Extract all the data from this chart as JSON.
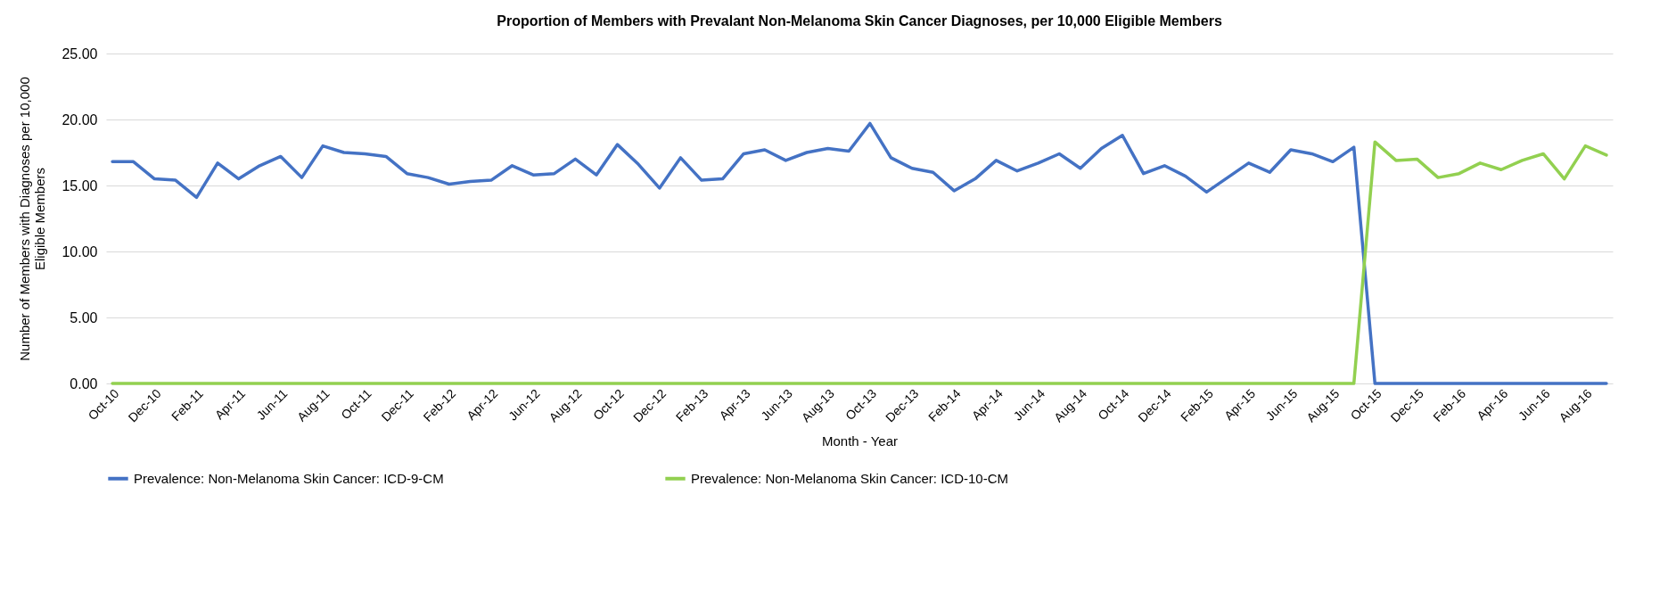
{
  "chart_data": {
    "type": "line",
    "title": "Proportion of Members with Prevalant Non-Melanoma Skin Cancer Diagnoses, per 10,000 Eligible Members",
    "xlabel": "Month - Year",
    "ylabel": "Number of Members with Diagnoses per 10,000\nEligible Members",
    "categories": [
      "Oct-10",
      null,
      "Dec-10",
      null,
      "Feb-11",
      null,
      "Apr-11",
      null,
      "Jun-11",
      null,
      "Aug-11",
      null,
      "Oct-11",
      null,
      "Dec-11",
      null,
      "Feb-12",
      null,
      "Apr-12",
      null,
      "Jun-12",
      null,
      "Aug-12",
      null,
      "Oct-12",
      null,
      "Dec-12",
      null,
      "Feb-13",
      null,
      "Apr-13",
      null,
      "Jun-13",
      null,
      "Aug-13",
      null,
      "Oct-13",
      null,
      "Dec-13",
      null,
      "Feb-14",
      null,
      "Apr-14",
      null,
      "Jun-14",
      null,
      "Aug-14",
      null,
      "Oct-14",
      null,
      "Dec-14",
      null,
      "Feb-15",
      null,
      "Apr-15",
      null,
      "Jun-15",
      null,
      "Aug-15",
      null,
      "Oct-15",
      null,
      "Dec-15",
      null,
      "Feb-16",
      null,
      "Apr-16",
      null,
      "Jun-16",
      null,
      "Aug-16",
      null
    ],
    "series": [
      {
        "name": "Prevalence: Non-Melanoma Skin Cancer: ICD-9-CM",
        "color": "#4472c4",
        "values": [
          16.8,
          16.8,
          15.5,
          15.4,
          14.1,
          16.7,
          15.5,
          16.5,
          17.2,
          15.6,
          18.0,
          17.5,
          17.4,
          17.2,
          15.9,
          15.6,
          15.1,
          15.3,
          15.4,
          16.5,
          15.8,
          15.9,
          17.0,
          15.8,
          18.1,
          16.6,
          14.8,
          17.1,
          15.4,
          15.5,
          17.4,
          17.7,
          16.9,
          17.5,
          17.8,
          17.6,
          19.7,
          17.1,
          16.3,
          16.0,
          14.6,
          15.5,
          16.9,
          16.1,
          16.7,
          17.4,
          16.3,
          17.8,
          18.8,
          15.9,
          16.5,
          15.7,
          14.5,
          15.6,
          16.7,
          16.0,
          17.7,
          17.4,
          16.8,
          17.9,
          0,
          0,
          0,
          0,
          0,
          0,
          0,
          0,
          0,
          0,
          0,
          0
        ]
      },
      {
        "name": "Prevalence: Non-Melanoma Skin Cancer: ICD-10-CM",
        "color": "#92d050",
        "values": [
          0,
          0,
          0,
          0,
          0,
          0,
          0,
          0,
          0,
          0,
          0,
          0,
          0,
          0,
          0,
          0,
          0,
          0,
          0,
          0,
          0,
          0,
          0,
          0,
          0,
          0,
          0,
          0,
          0,
          0,
          0,
          0,
          0,
          0,
          0,
          0,
          0,
          0,
          0,
          0,
          0,
          0,
          0,
          0,
          0,
          0,
          0,
          0,
          0,
          0,
          0,
          0,
          0,
          0,
          0,
          0,
          0,
          0,
          0,
          0,
          18.3,
          16.9,
          17.0,
          15.6,
          15.9,
          16.7,
          16.2,
          16.9,
          17.4,
          15.5,
          18.0,
          17.3
        ]
      }
    ],
    "ylim": [
      0,
      25
    ],
    "yticks": [
      {
        "value": 0,
        "label": "0.00"
      },
      {
        "value": 5,
        "label": "5.00"
      },
      {
        "value": 10,
        "label": "10.00"
      },
      {
        "value": 15,
        "label": "15.00"
      },
      {
        "value": 20,
        "label": "20.00"
      },
      {
        "value": 25,
        "label": "25.00"
      }
    ],
    "grid": "y",
    "legend": "bottom",
    "marker": "none",
    "line_style": "solid"
  }
}
